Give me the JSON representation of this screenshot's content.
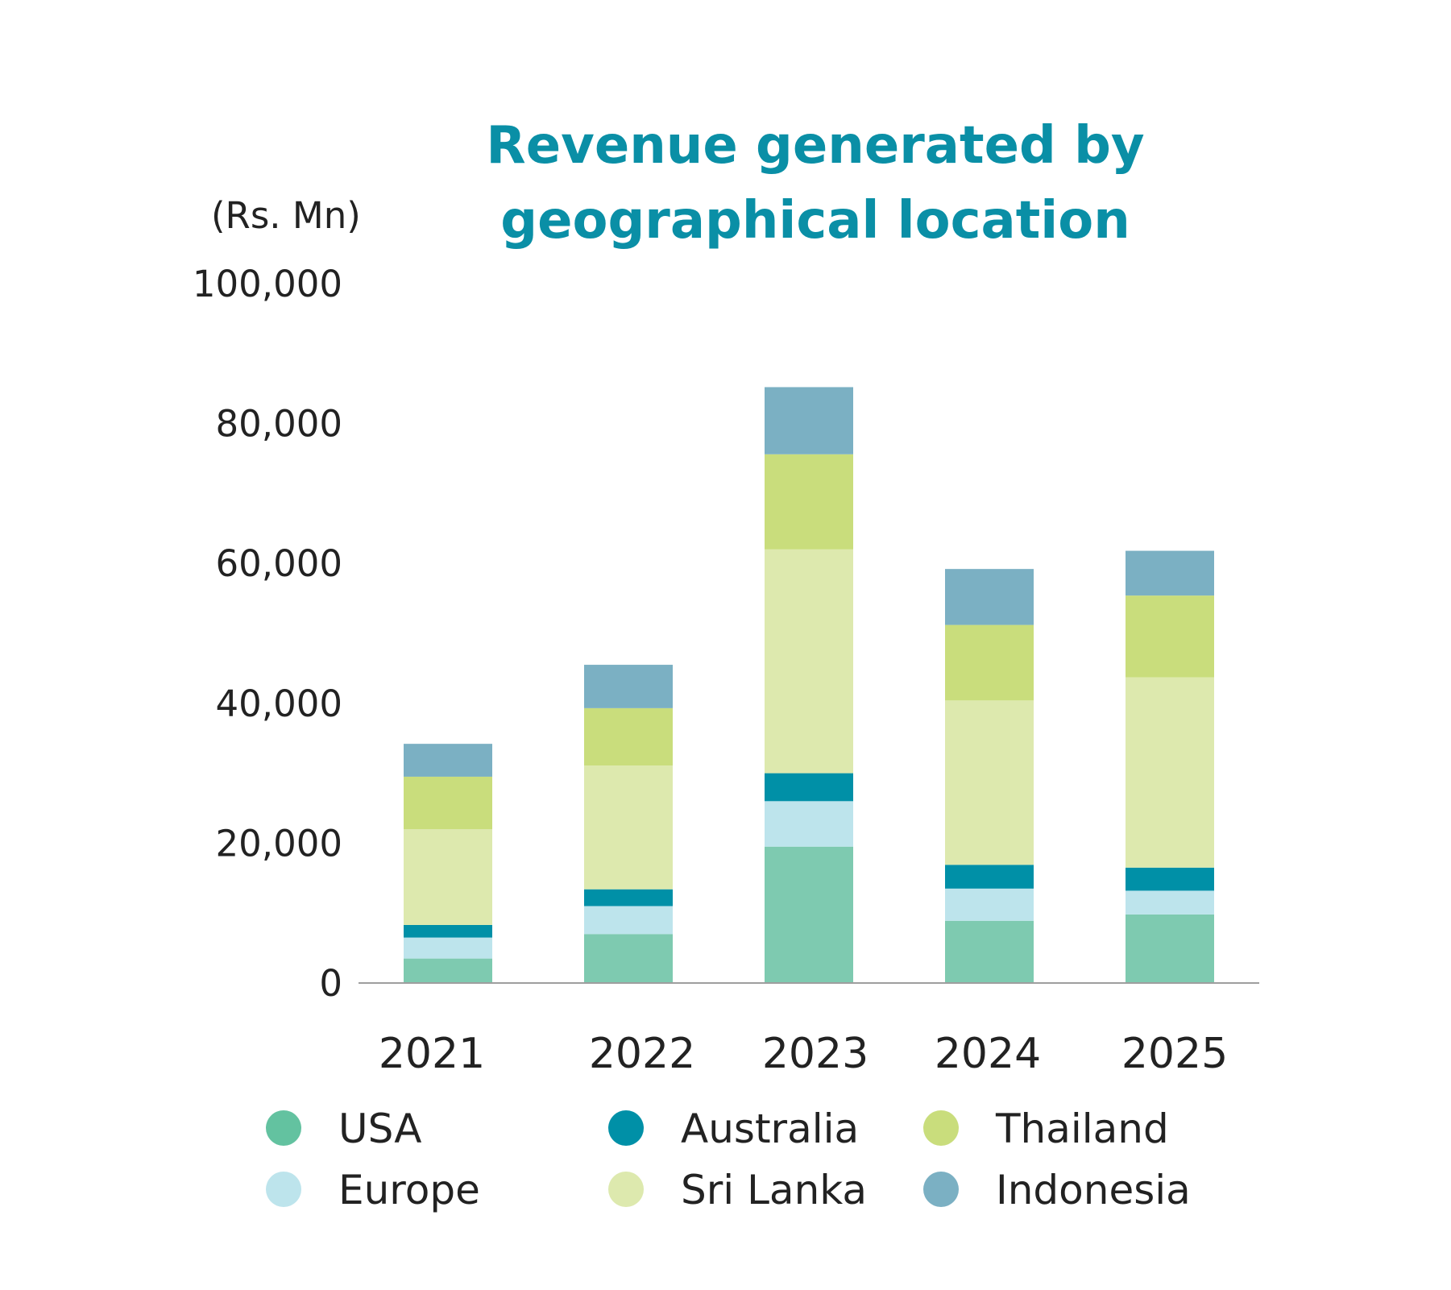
{
  "chart_data": {
    "type": "bar",
    "stacked": true,
    "title": "Revenue generated by geographical location",
    "title_lines": [
      "Revenue generated by",
      "geographical location"
    ],
    "unit_label": "(Rs. Mn)",
    "ylim": [
      0,
      100000
    ],
    "y_ticks": [
      "0",
      "20,000",
      "40,000",
      "60,000",
      "80,000",
      "100,000"
    ],
    "y_tick_values": [
      0,
      20000,
      40000,
      60000,
      80000,
      100000
    ],
    "categories": [
      "2021",
      "2022",
      "2023",
      "2024",
      "2025"
    ],
    "series": [
      {
        "name": "USA",
        "color": "#7ecab0",
        "legend_color": "#63c2a0",
        "values": [
          3500,
          7000,
          19500,
          8900,
          9800
        ]
      },
      {
        "name": "Europe",
        "color": "#bde4ec",
        "legend_color": "#bde4ec",
        "values": [
          3000,
          4000,
          6500,
          4600,
          3400
        ]
      },
      {
        "name": "Australia",
        "color": "#0090a7",
        "legend_color": "#0090a7",
        "values": [
          1800,
          2400,
          4000,
          3400,
          3300
        ]
      },
      {
        "name": "Sri Lanka",
        "color": "#dde9ae",
        "legend_color": "#dde9ae",
        "values": [
          13700,
          17700,
          32000,
          23500,
          27200
        ]
      },
      {
        "name": "Thailand",
        "color": "#c9dd7c",
        "legend_color": "#c9dd7c",
        "values": [
          7500,
          8200,
          13600,
          10800,
          11700
        ]
      },
      {
        "name": "Indonesia",
        "color": "#7bb0c3",
        "legend_color": "#7bb0c3",
        "values": [
          4700,
          6200,
          9600,
          8000,
          6400
        ]
      }
    ],
    "legend_placement": "bottom",
    "legend_order": [
      "USA",
      "Australia",
      "Thailand",
      "Europe",
      "Sri Lanka",
      "Indonesia"
    ],
    "grid": false
  },
  "colors": {
    "title": "#0a8fa6",
    "text": "#222222",
    "axis": "#9e9e9e"
  }
}
